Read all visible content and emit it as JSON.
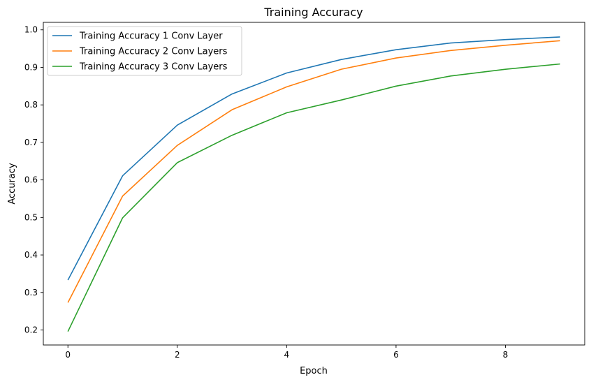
{
  "chart_data": {
    "type": "line",
    "title": "Training Accuracy",
    "xlabel": "Epoch",
    "ylabel": "Accuracy",
    "xlim": [
      -0.45,
      9.45
    ],
    "ylim": [
      0.16,
      1.02
    ],
    "grid": false,
    "legend": "top-left",
    "xticks": [
      0,
      2,
      4,
      6,
      8
    ],
    "yticks": [
      0.2,
      0.3,
      0.4,
      0.5,
      0.6,
      0.7,
      0.8,
      0.9,
      1.0
    ],
    "x": [
      0,
      1,
      2,
      3,
      4,
      5,
      6,
      7,
      8,
      9
    ],
    "series": [
      {
        "name": "Training Accuracy 1 Conv Layer",
        "color": "#1f77b4",
        "values": [
          0.333,
          0.611,
          0.746,
          0.829,
          0.885,
          0.921,
          0.947,
          0.965,
          0.974,
          0.981
        ]
      },
      {
        "name": "Training Accuracy 2 Conv Layers",
        "color": "#ff7f0e",
        "values": [
          0.273,
          0.557,
          0.692,
          0.787,
          0.848,
          0.895,
          0.925,
          0.945,
          0.959,
          0.971
        ]
      },
      {
        "name": "Training Accuracy 3 Conv Layers",
        "color": "#2ca02c",
        "values": [
          0.196,
          0.499,
          0.646,
          0.719,
          0.779,
          0.813,
          0.85,
          0.877,
          0.895,
          0.909
        ]
      }
    ]
  }
}
